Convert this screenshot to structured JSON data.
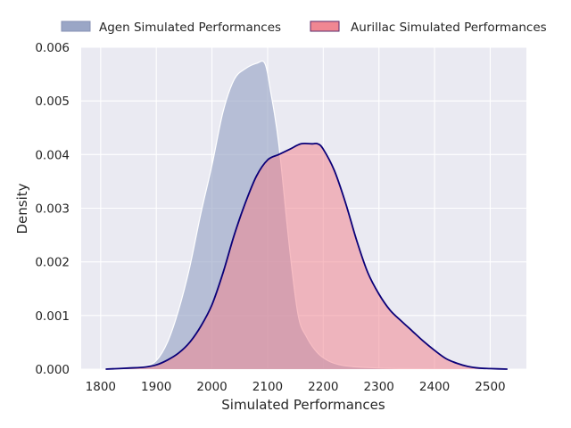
{
  "chart_data": {
    "type": "area",
    "xlabel": "Simulated Performances",
    "ylabel": "Density",
    "xlim": [
      1765,
      2565
    ],
    "ylim": [
      0,
      0.006
    ],
    "xticks": [
      1800,
      1900,
      2000,
      2100,
      2200,
      2300,
      2400,
      2500
    ],
    "yticks": [
      0.0,
      0.001,
      0.002,
      0.003,
      0.004,
      0.005,
      0.006
    ],
    "ytick_labels": [
      "0.000",
      "0.001",
      "0.002",
      "0.003",
      "0.004",
      "0.005",
      "0.006"
    ],
    "grid": true,
    "legend_placement": "top, above plot",
    "background_color": "#eaeaf2",
    "series": [
      {
        "name": "Agen Simulated Performances",
        "fill_color": "#9aa6c6",
        "line_color": "#ffffff",
        "x": [
          1809,
          1850,
          1880,
          1900,
          1920,
          1940,
          1960,
          1980,
          2000,
          2020,
          2040,
          2060,
          2080,
          2095,
          2105,
          2120,
          2140,
          2155,
          2170,
          2190,
          2210,
          2230,
          2250,
          2280,
          2300,
          2340,
          2400,
          2463
        ],
        "y": [
          0.0,
          2e-05,
          6e-05,
          0.00016,
          0.0005,
          0.0011,
          0.0019,
          0.0029,
          0.0038,
          0.0048,
          0.0054,
          0.0056,
          0.0057,
          0.0057,
          0.0052,
          0.0042,
          0.0022,
          0.001,
          0.0006,
          0.0003,
          0.00015,
          8e-05,
          5e-05,
          3e-05,
          2e-05,
          1e-05,
          3e-06,
          0.0
        ]
      },
      {
        "name": "Aurillac Simulated Performances",
        "fill_color": "#f08792",
        "line_color": "#0a0078",
        "x": [
          1809,
          1850,
          1880,
          1900,
          1920,
          1940,
          1960,
          1980,
          2000,
          2020,
          2040,
          2060,
          2080,
          2100,
          2120,
          2140,
          2160,
          2180,
          2190,
          2200,
          2220,
          2240,
          2260,
          2280,
          2300,
          2320,
          2340,
          2360,
          2380,
          2400,
          2420,
          2440,
          2460,
          2480,
          2500,
          2531
        ],
        "y": [
          0.0,
          2e-05,
          4e-05,
          8e-05,
          0.00017,
          0.0003,
          0.0005,
          0.0008,
          0.0012,
          0.0018,
          0.0025,
          0.0031,
          0.0036,
          0.0039,
          0.004,
          0.0041,
          0.0042,
          0.0042,
          0.0042,
          0.0041,
          0.0037,
          0.0031,
          0.0024,
          0.0018,
          0.0014,
          0.0011,
          0.0009,
          0.00071,
          0.00052,
          0.00035,
          0.0002,
          0.00011,
          5e-05,
          2e-05,
          1e-05,
          0.0
        ]
      }
    ]
  }
}
